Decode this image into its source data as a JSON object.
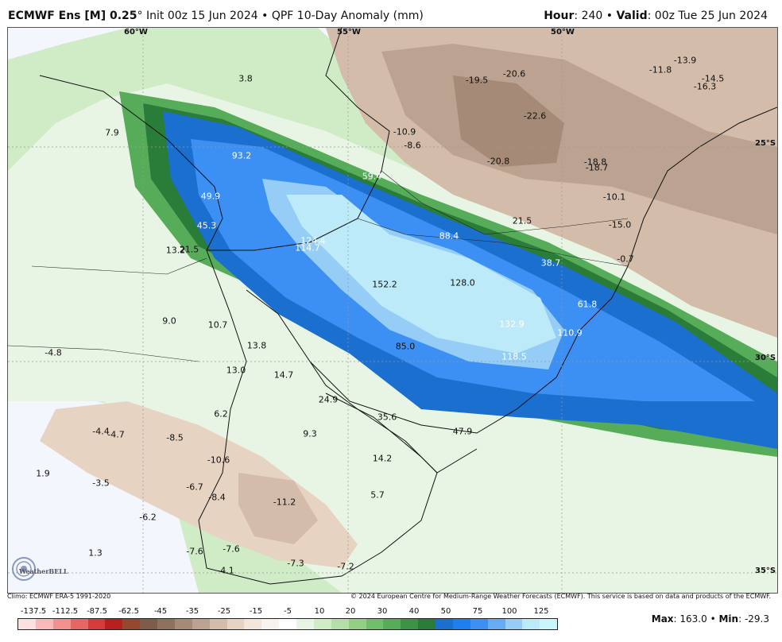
{
  "header": {
    "model": "ECMWF Ens [M] 0.25",
    "degree": "°",
    "init": "Init 00z 15 Jun 2024",
    "bullet": "•",
    "product": "QPF 10-Day Anomaly (mm)",
    "hour_label": "Hour",
    "hour_value": ": 240",
    "valid_label": "Valid",
    "valid_value": ": 00z Tue 25 Jun 2024"
  },
  "footer": {
    "climo": "Climo: ECMWF ERA-5 1991-2020",
    "copyright": "© 2024 European Centre for Medium-Range Weather Forecasts (ECMWF). This service is based on data and products of the ECMWF.",
    "logo_text": "WeatherBELL"
  },
  "stats": {
    "max_label": "Max",
    "max_value": ": 163.0",
    "sep": " • ",
    "min_label": "Min",
    "min_value": ": -29.3"
  },
  "grid_labels": {
    "lon": [
      "60°W",
      "55°W",
      "50°W"
    ],
    "lat": [
      "25°S",
      "30°S",
      "35°S"
    ]
  },
  "colorbar": {
    "ticks": [
      "-137.5",
      "-112.5",
      "-87.5",
      "-62.5",
      "-45",
      "-35",
      "-25",
      "-15",
      "-5",
      "10",
      "20",
      "30",
      "40",
      "50",
      "75",
      "100",
      "125"
    ],
    "colors": [
      "#fde0e0",
      "#f9b9b9",
      "#f39191",
      "#e86565",
      "#d63b3b",
      "#b81f1f",
      "#96472f",
      "#7d5c4c",
      "#8e725f",
      "#a58b77",
      "#bca391",
      "#d3bca9",
      "#e6d3c2",
      "#f2e6da",
      "#f8f3ee",
      "#ffffff",
      "#e8f5e4",
      "#cfecc6",
      "#b3e0a6",
      "#93d086",
      "#72bf6b",
      "#56ac59",
      "#3c9346",
      "#2a7c39",
      "#1a6fcf",
      "#1d7ff0",
      "#3c8ff3",
      "#66acf3",
      "#95cdf6",
      "#bdeaf8",
      "#c9f5fb"
    ]
  },
  "map_values": [
    {
      "t": "3.8"
    },
    {
      "t": "7.9"
    },
    {
      "t": "93.2"
    },
    {
      "t": "59.4"
    },
    {
      "t": "49.9"
    },
    {
      "t": "45.3"
    },
    {
      "t": "13.2"
    },
    {
      "t": "21.5"
    },
    {
      "t": "124.4"
    },
    {
      "t": "114.7"
    },
    {
      "t": "88.4"
    },
    {
      "t": "21.5"
    },
    {
      "t": "38.7"
    },
    {
      "t": "152.2"
    },
    {
      "t": "128.0"
    },
    {
      "t": "61.8"
    },
    {
      "t": "132.9"
    },
    {
      "t": "110.9"
    },
    {
      "t": "85.0"
    },
    {
      "t": "118.5"
    },
    {
      "t": "9.0"
    },
    {
      "t": "10.7"
    },
    {
      "t": "13.8"
    },
    {
      "t": "-4.8"
    },
    {
      "t": "13.0"
    },
    {
      "t": "14.7"
    },
    {
      "t": "24.9"
    },
    {
      "t": "35.6"
    },
    {
      "t": "47.9"
    },
    {
      "t": "6.2"
    },
    {
      "t": "-4.4"
    },
    {
      "t": "-4.7"
    },
    {
      "t": "-8.5"
    },
    {
      "t": "9.3"
    },
    {
      "t": "-10.6"
    },
    {
      "t": "14.2"
    },
    {
      "t": "1.9"
    },
    {
      "t": "-3.5"
    },
    {
      "t": "-6.7"
    },
    {
      "t": "-8.4"
    },
    {
      "t": "-11.2"
    },
    {
      "t": "5.7"
    },
    {
      "t": "-6.2"
    },
    {
      "t": "1.3"
    },
    {
      "t": "-7.6"
    },
    {
      "t": "-7.6"
    },
    {
      "t": "-4.1"
    },
    {
      "t": "-7.3"
    },
    {
      "t": "-7.2"
    },
    {
      "t": "-10.9"
    },
    {
      "t": "-8.6"
    },
    {
      "t": "-19.5"
    },
    {
      "t": "-20.6"
    },
    {
      "t": "-22.6"
    },
    {
      "t": "-20.8"
    },
    {
      "t": "-13.9"
    },
    {
      "t": "-11.8"
    },
    {
      "t": "-14.5"
    },
    {
      "t": "-16.3"
    },
    {
      "t": "-18.8"
    },
    {
      "t": "-18.7"
    },
    {
      "t": "-10.1"
    },
    {
      "t": "-15.0"
    },
    {
      "t": "-0.7"
    }
  ]
}
